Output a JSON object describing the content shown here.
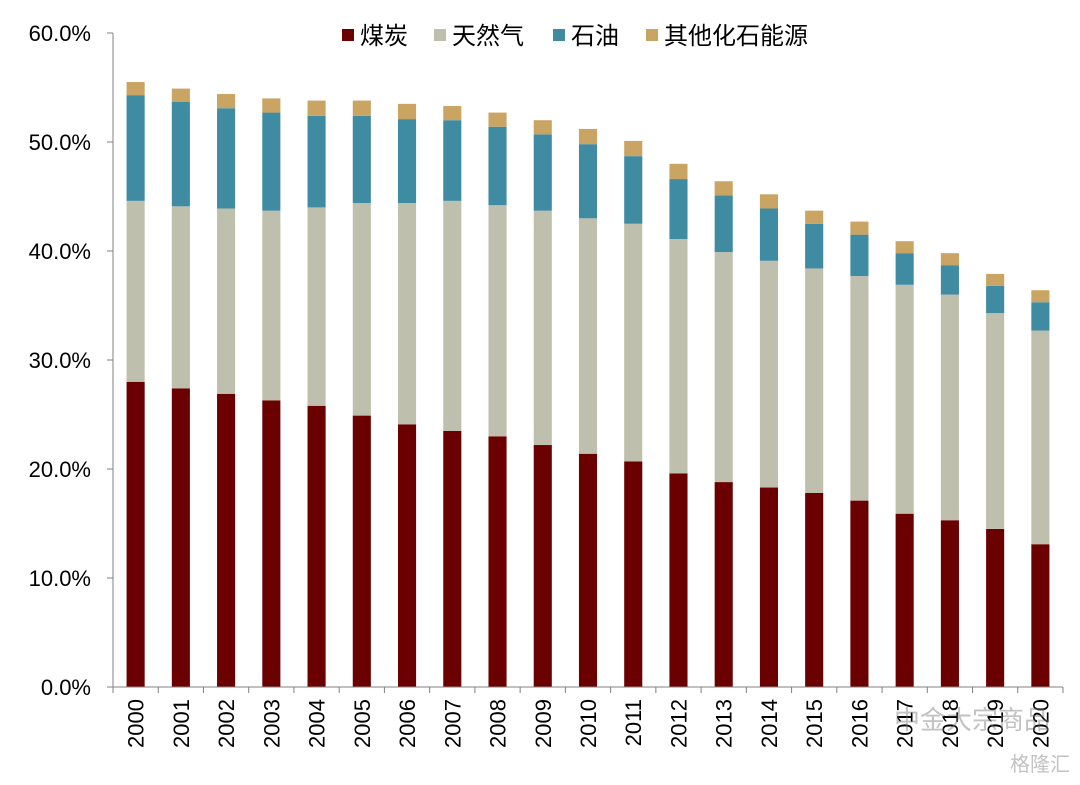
{
  "chart_data": {
    "type": "bar",
    "stacked": true,
    "categories": [
      "2000",
      "2001",
      "2002",
      "2003",
      "2004",
      "2005",
      "2006",
      "2007",
      "2008",
      "2009",
      "2010",
      "2011",
      "2012",
      "2013",
      "2014",
      "2015",
      "2016",
      "2017",
      "2018",
      "2019",
      "2020"
    ],
    "series": [
      {
        "name": "煤炭",
        "color": "#6b0000",
        "values": [
          28.0,
          27.4,
          26.9,
          26.3,
          25.8,
          24.9,
          24.1,
          23.5,
          23.0,
          22.2,
          21.4,
          20.7,
          19.6,
          18.8,
          18.3,
          17.8,
          17.1,
          15.9,
          15.3,
          14.5,
          13.1
        ]
      },
      {
        "name": "天然气",
        "color": "#bfbfad",
        "values": [
          16.6,
          16.7,
          17.0,
          17.4,
          18.2,
          19.5,
          20.3,
          21.1,
          21.2,
          21.5,
          21.6,
          21.8,
          21.5,
          21.1,
          20.8,
          20.6,
          20.6,
          21.0,
          20.7,
          19.8,
          19.6
        ]
      },
      {
        "name": "石油",
        "color": "#3f8ba2",
        "values": [
          9.7,
          9.6,
          9.2,
          9.0,
          8.4,
          8.0,
          7.7,
          7.4,
          7.2,
          7.0,
          6.8,
          6.2,
          5.5,
          5.2,
          4.8,
          4.1,
          3.8,
          2.9,
          2.7,
          2.5,
          2.6
        ]
      },
      {
        "name": "其他化石能源",
        "color": "#c9a463",
        "values": [
          1.2,
          1.2,
          1.3,
          1.3,
          1.4,
          1.4,
          1.4,
          1.3,
          1.3,
          1.3,
          1.4,
          1.4,
          1.4,
          1.3,
          1.3,
          1.2,
          1.2,
          1.1,
          1.1,
          1.1,
          1.1
        ]
      }
    ],
    "yticks": [
      "0.0%",
      "10.0%",
      "20.0%",
      "30.0%",
      "40.0%",
      "50.0%",
      "60.0%"
    ],
    "ylim": [
      0,
      60
    ],
    "legend_position": "top",
    "grid": false
  },
  "watermark": {
    "line1": "中金大宗商品",
    "line2": "格隆汇"
  }
}
